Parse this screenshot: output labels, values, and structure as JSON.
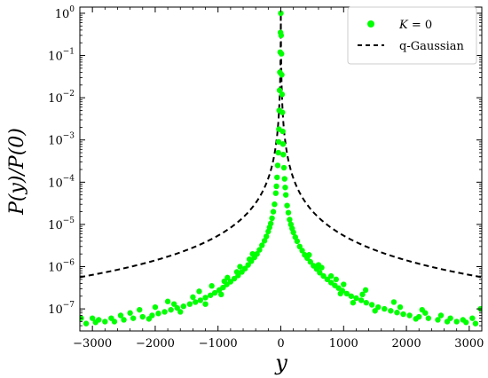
{
  "chart_data": {
    "type": "scatter",
    "title": "",
    "xlabel": "y",
    "ylabel": "P(y)/P(0)",
    "xlim": [
      -3200,
      3200
    ],
    "ylim": [
      3e-08,
      1.4
    ],
    "yscale": "log",
    "grid": false,
    "legend_position": "top-right",
    "x_ticks": [
      {
        "value": -3000,
        "label": "−3000"
      },
      {
        "value": -2000,
        "label": "−2000"
      },
      {
        "value": -1000,
        "label": "−1000"
      },
      {
        "value": 0,
        "label": "0"
      },
      {
        "value": 1000,
        "label": "1000"
      },
      {
        "value": 2000,
        "label": "2000"
      },
      {
        "value": 3000,
        "label": "3000"
      }
    ],
    "y_ticks": [
      {
        "value": 1e-07,
        "base": "10",
        "exp": "−7"
      },
      {
        "value": 1e-06,
        "base": "10",
        "exp": "−6"
      },
      {
        "value": 1e-05,
        "base": "10",
        "exp": "−5"
      },
      {
        "value": 0.0001,
        "base": "10",
        "exp": "−4"
      },
      {
        "value": 0.001,
        "base": "10",
        "exp": "−3"
      },
      {
        "value": 0.01,
        "base": "10",
        "exp": "−2"
      },
      {
        "value": 0.1,
        "base": "10",
        "exp": "−1"
      },
      {
        "value": 1,
        "base": "10",
        "exp": "0"
      }
    ],
    "legend": [
      {
        "label_var": "K",
        "label_rest": " = 0",
        "kind": "marker"
      },
      {
        "label": "q-Gaussian",
        "kind": "dashed-line"
      }
    ],
    "series": [
      {
        "name": "K = 0",
        "color": "#00ff00",
        "kind": "scatter",
        "points": [
          [
            0,
            1.0
          ],
          [
            -5,
            0.35
          ],
          [
            5,
            0.3
          ],
          [
            -10,
            0.12
          ],
          [
            10,
            0.11
          ],
          [
            -15,
            0.04
          ],
          [
            15,
            0.035
          ],
          [
            -20,
            0.015
          ],
          [
            20,
            0.012
          ],
          [
            -25,
            0.005
          ],
          [
            25,
            0.0045
          ],
          [
            -30,
            0.0018
          ],
          [
            30,
            0.0016
          ],
          [
            -35,
            0.0009
          ],
          [
            35,
            0.0008
          ],
          [
            -40,
            0.0005
          ],
          [
            40,
            0.00045
          ],
          [
            -50,
            0.00025
          ],
          [
            50,
            0.00022
          ],
          [
            -60,
            0.00013
          ],
          [
            60,
            0.00012
          ],
          [
            -70,
            8e-05
          ],
          [
            70,
            7.5e-05
          ],
          [
            -80,
            5.5e-05
          ],
          [
            80,
            5e-05
          ],
          [
            -100,
            3e-05
          ],
          [
            100,
            2.8e-05
          ],
          [
            -120,
            2e-05
          ],
          [
            120,
            1.9e-05
          ],
          [
            -140,
            1.4e-05
          ],
          [
            140,
            1.3e-05
          ],
          [
            -160,
            1.05e-05
          ],
          [
            160,
            1e-05
          ],
          [
            -180,
            8.5e-06
          ],
          [
            180,
            8e-06
          ],
          [
            -200,
            6.8e-06
          ],
          [
            200,
            6.5e-06
          ],
          [
            -230,
            5.2e-06
          ],
          [
            230,
            5e-06
          ],
          [
            -260,
            4.1e-06
          ],
          [
            260,
            4e-06
          ],
          [
            -300,
            3.2e-06
          ],
          [
            300,
            3e-06
          ],
          [
            -340,
            2.5e-06
          ],
          [
            340,
            2.4e-06
          ],
          [
            -380,
            2e-06
          ],
          [
            380,
            1.9e-06
          ],
          [
            -420,
            1.65e-06
          ],
          [
            420,
            1.6e-06
          ],
          [
            -470,
            1.35e-06
          ],
          [
            470,
            1.3e-06
          ],
          [
            -520,
            1.1e-06
          ],
          [
            520,
            1.05e-06
          ],
          [
            -570,
            9e-07
          ],
          [
            570,
            8.8e-07
          ],
          [
            -620,
            7.5e-07
          ],
          [
            620,
            7.2e-07
          ],
          [
            -680,
            6.2e-07
          ],
          [
            680,
            6e-07
          ],
          [
            -740,
            5.2e-07
          ],
          [
            740,
            5e-07
          ],
          [
            -800,
            4.4e-07
          ],
          [
            800,
            4.2e-07
          ],
          [
            -860,
            3.8e-07
          ],
          [
            860,
            3.6e-07
          ],
          [
            -920,
            3.2e-07
          ],
          [
            920,
            3.1e-07
          ],
          [
            -980,
            2.8e-07
          ],
          [
            980,
            2.7e-07
          ],
          [
            -1050,
            2.4e-07
          ],
          [
            1050,
            2.3e-07
          ],
          [
            -1120,
            2.1e-07
          ],
          [
            1120,
            2e-07
          ],
          [
            -1200,
            1.85e-07
          ],
          [
            1200,
            1.8e-07
          ],
          [
            -1280,
            1.6e-07
          ],
          [
            1280,
            1.6e-07
          ],
          [
            -1360,
            1.45e-07
          ],
          [
            1360,
            1.4e-07
          ],
          [
            -1450,
            1.3e-07
          ],
          [
            1450,
            1.25e-07
          ],
          [
            -1550,
            1.15e-07
          ],
          [
            1550,
            1.1e-07
          ],
          [
            -1650,
            1.05e-07
          ],
          [
            1650,
            1e-07
          ],
          [
            -1750,
            9.5e-08
          ],
          [
            1750,
            9e-08
          ],
          [
            -1850,
            8.5e-08
          ],
          [
            1850,
            8.2e-08
          ],
          [
            -1950,
            7.8e-08
          ],
          [
            1950,
            7.5e-08
          ],
          [
            -2050,
            7e-08
          ],
          [
            2050,
            7e-08
          ],
          [
            -2200,
            6.5e-08
          ],
          [
            2200,
            6.5e-08
          ],
          [
            -2350,
            6e-08
          ],
          [
            2350,
            6e-08
          ],
          [
            -2500,
            5.5e-08
          ],
          [
            2500,
            5.5e-08
          ],
          [
            -2650,
            5e-08
          ],
          [
            2650,
            5e-08
          ],
          [
            -2800,
            5e-08
          ],
          [
            2800,
            5e-08
          ],
          [
            -2950,
            4.8e-08
          ],
          [
            2950,
            4.8e-08
          ],
          [
            -3100,
            4.5e-08
          ],
          [
            3100,
            4.5e-08
          ],
          [
            -1100,
            3.5e-07
          ],
          [
            -900,
            4.5e-07
          ],
          [
            -700,
            7.5e-07
          ],
          [
            -500,
            1.5e-06
          ],
          [
            600,
            1.1e-06
          ],
          [
            800,
            6e-07
          ],
          [
            1000,
            3.8e-07
          ],
          [
            1300,
            2.2e-07
          ],
          [
            -1400,
            1.9e-07
          ],
          [
            -1700,
            1.3e-07
          ],
          [
            -2000,
            1.1e-07
          ],
          [
            1900,
            1.1e-07
          ],
          [
            -2400,
            8e-08
          ],
          [
            2300,
            8e-08
          ],
          [
            2700,
            6e-08
          ],
          [
            -2700,
            6e-08
          ],
          [
            -1200,
            1.3e-07
          ],
          [
            1150,
            1.4e-07
          ],
          [
            -950,
            2.2e-07
          ],
          [
            950,
            2.3e-07
          ],
          [
            -1600,
            8.5e-08
          ],
          [
            1500,
            9e-08
          ],
          [
            -2100,
            5.8e-08
          ],
          [
            2150,
            5.8e-08
          ],
          [
            -3000,
            6e-08
          ],
          [
            3050,
            6e-08
          ],
          [
            3180,
            1e-07
          ],
          [
            -3180,
            6e-08
          ],
          [
            -1300,
            2.6e-07
          ],
          [
            1350,
            2.8e-07
          ],
          [
            -850,
            5.5e-07
          ],
          [
            880,
            5e-07
          ],
          [
            -650,
            1e-06
          ],
          [
            650,
            9.5e-07
          ],
          [
            -450,
            2e-06
          ],
          [
            450,
            1.9e-06
          ],
          [
            -1800,
            1.5e-07
          ],
          [
            1800,
            1.45e-07
          ],
          [
            -2250,
            9.5e-08
          ],
          [
            2250,
            9.5e-08
          ],
          [
            -2550,
            7e-08
          ],
          [
            2550,
            7e-08
          ],
          [
            -2900,
            5.5e-08
          ],
          [
            2900,
            5.5e-08
          ]
        ]
      },
      {
        "name": "q-Gaussian",
        "color": "#000000",
        "kind": "dashed-line",
        "model": {
          "A": 1.0,
          "B": 2.0,
          "p": 1.95
        },
        "x_range": [
          -3200,
          3200
        ]
      }
    ]
  }
}
